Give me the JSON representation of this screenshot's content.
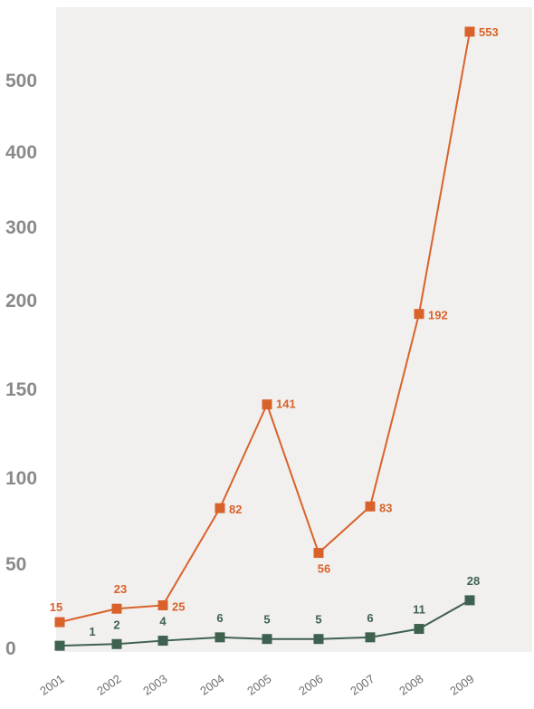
{
  "chart_data": {
    "type": "line",
    "title": "",
    "xlabel": "",
    "ylabel": "",
    "categories": [
      "2001",
      "2002",
      "2003",
      "2004",
      "2005",
      "2006",
      "2007",
      "2008",
      "2009"
    ],
    "y_axis_scale": "non-linear (labelled ticks unevenly spaced)",
    "yticks": [
      "0",
      "50",
      "100",
      "150",
      "200",
      "300",
      "400",
      "500"
    ],
    "grid": false,
    "legend": "none",
    "series": [
      {
        "color": "#d9622b",
        "marker": "square",
        "values": [
          15,
          23,
          25,
          82,
          141,
          56,
          83,
          192,
          553
        ],
        "labels": [
          "15",
          "23",
          "25",
          "82",
          "141",
          "56",
          "83",
          "192",
          "553"
        ]
      },
      {
        "color": "#3f6150",
        "marker": "square",
        "values": [
          1,
          2,
          4,
          6,
          5,
          5,
          6,
          11,
          28
        ],
        "labels": [
          "1",
          "2",
          "4",
          "6",
          "5",
          "5",
          "6",
          "11",
          "28"
        ]
      }
    ]
  }
}
